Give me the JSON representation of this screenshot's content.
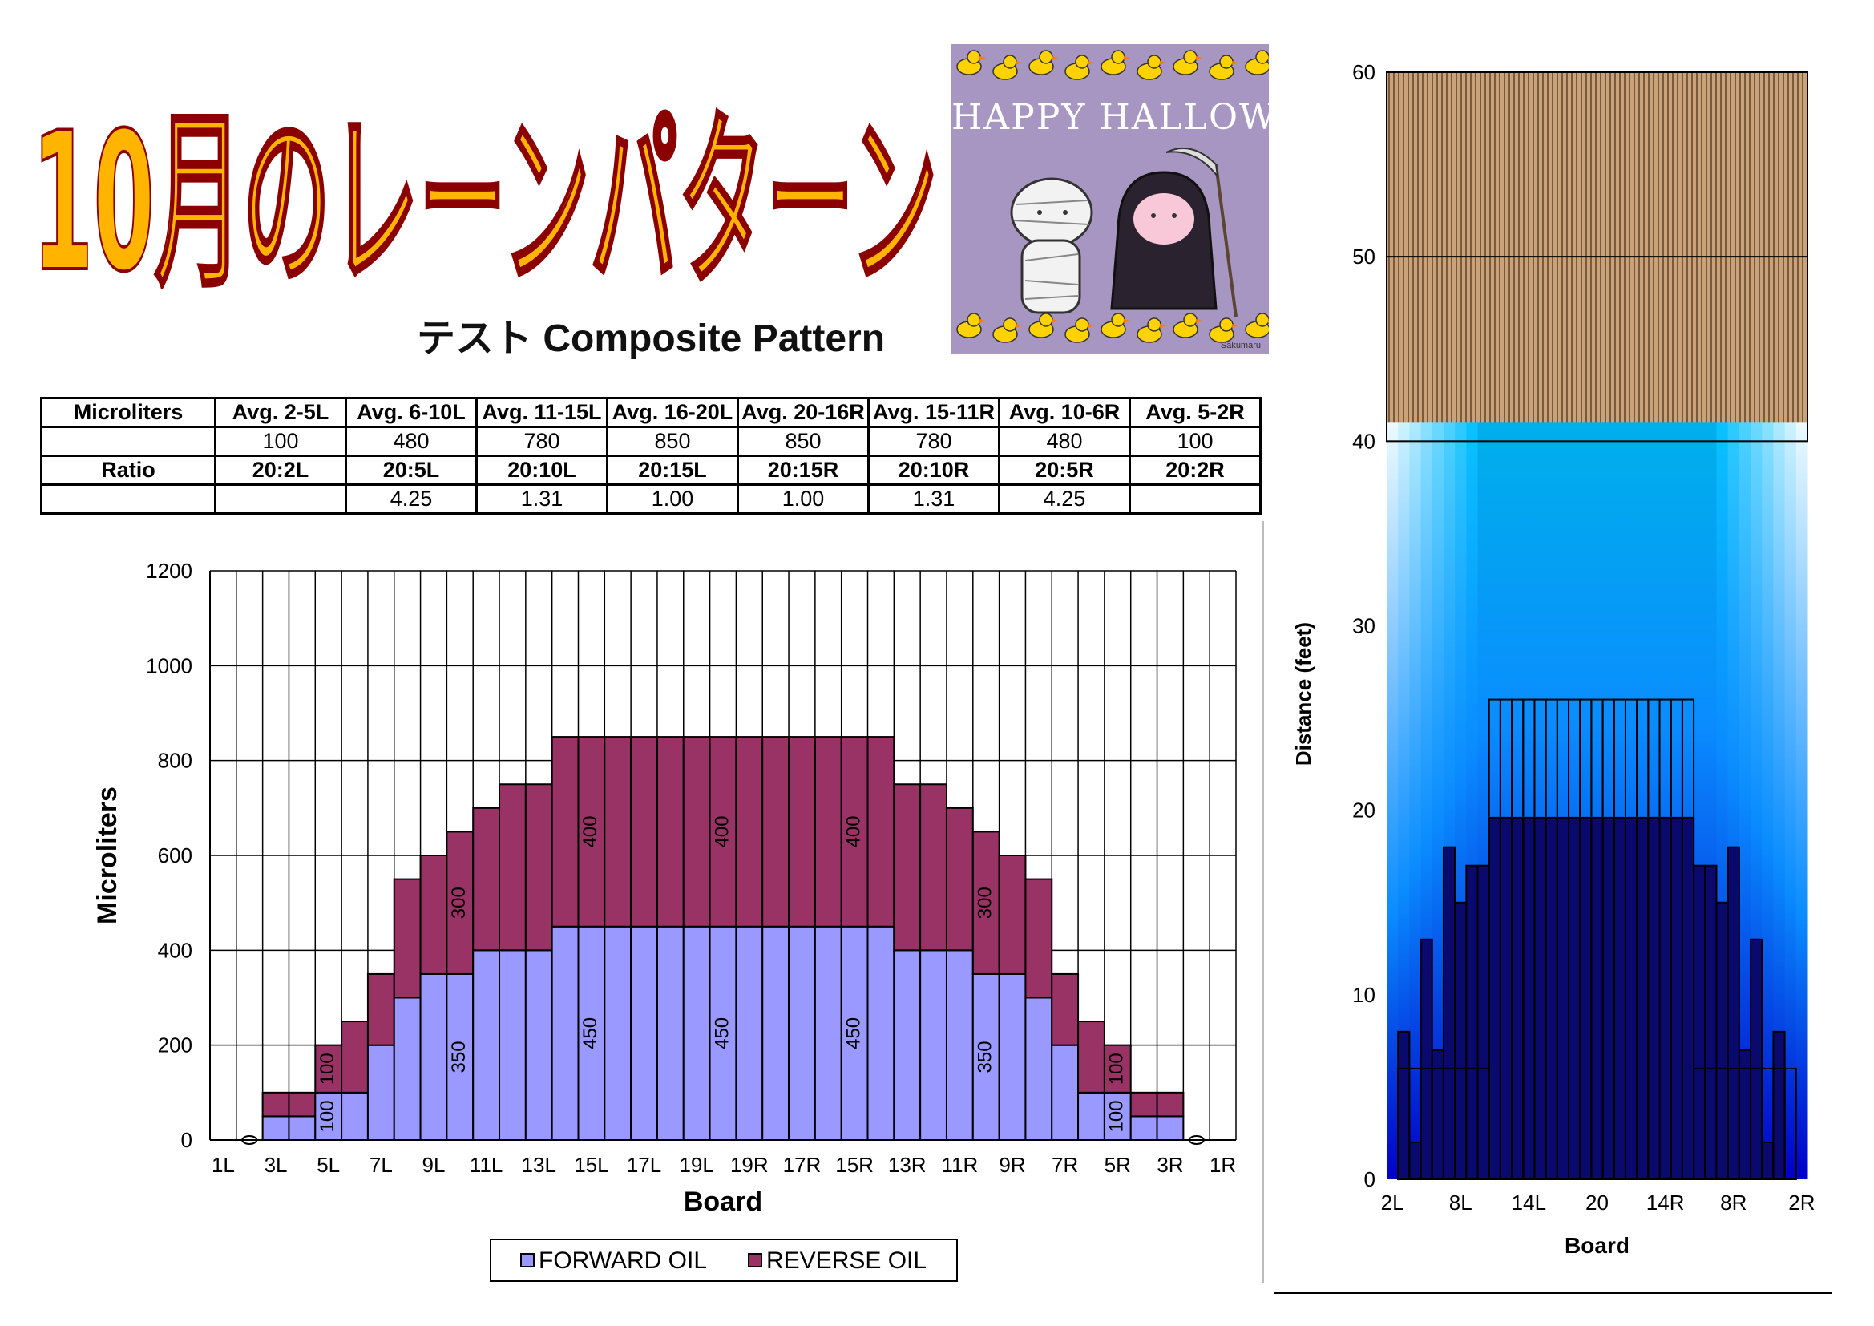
{
  "title": "10月のレーンパターン",
  "subtitle": "テスト Composite Pattern",
  "halloween": {
    "text": "HAPPY HALLOWEEN",
    "signature": "Sakumaru"
  },
  "table": {
    "rows": [
      [
        "Microliters",
        "Avg. 2-5L",
        "Avg. 6-10L",
        "Avg. 11-15L",
        "Avg. 16-20L",
        "Avg. 20-16R",
        "Avg. 15-11R",
        "Avg. 10-6R",
        "Avg. 5-2R"
      ],
      [
        "",
        "100",
        "480",
        "780",
        "850",
        "850",
        "780",
        "480",
        "100"
      ],
      [
        "Ratio",
        "20:2L",
        "20:5L",
        "20:10L",
        "20:15L",
        "20:15R",
        "20:10R",
        "20:5R",
        "20:2R"
      ],
      [
        "",
        "",
        "4.25",
        "1.31",
        "1.00",
        "1.00",
        "1.31",
        "4.25",
        ""
      ]
    ]
  },
  "colors": {
    "forward": "#9999ff",
    "reverse": "#993366",
    "title_fill": "#ffb400",
    "title_stroke": "#8b0000",
    "wood": "#c9a27a",
    "wood_stripe": "#7a5a3c"
  },
  "chart_data": [
    {
      "type": "bar",
      "stacked": true,
      "categories": [
        "1L",
        "2L",
        "3L",
        "4L",
        "5L",
        "6L",
        "7L",
        "8L",
        "9L",
        "10L",
        "11L",
        "12L",
        "13L",
        "14L",
        "15L",
        "16L",
        "17L",
        "18L",
        "19L",
        "20",
        "19R",
        "18R",
        "17R",
        "16R",
        "15R",
        "14R",
        "13R",
        "12R",
        "11R",
        "10R",
        "9R",
        "8R",
        "7R",
        "6R",
        "5R",
        "4R",
        "3R",
        "2R",
        "1R"
      ],
      "tick_labels": [
        "1L",
        "3L",
        "5L",
        "7L",
        "9L",
        "11L",
        "13L",
        "15L",
        "17L",
        "19L",
        "19R",
        "17R",
        "15R",
        "13R",
        "11R",
        "9R",
        "7R",
        "5R",
        "3R",
        "1R"
      ],
      "series": [
        {
          "name": "FORWARD OIL",
          "values": [
            0,
            0,
            50,
            50,
            100,
            100,
            200,
            300,
            350,
            350,
            400,
            400,
            400,
            450,
            450,
            450,
            450,
            450,
            450,
            450,
            450,
            450,
            450,
            450,
            450,
            450,
            400,
            400,
            400,
            350,
            350,
            300,
            200,
            100,
            100,
            50,
            50,
            0,
            0
          ]
        },
        {
          "name": "REVERSE OIL",
          "values": [
            0,
            0,
            50,
            50,
            100,
            150,
            150,
            250,
            250,
            300,
            300,
            350,
            350,
            400,
            400,
            400,
            400,
            400,
            400,
            400,
            400,
            400,
            400,
            400,
            400,
            400,
            350,
            350,
            300,
            300,
            250,
            250,
            150,
            150,
            100,
            50,
            50,
            0,
            0
          ]
        }
      ],
      "data_labels": [
        {
          "category": "5L",
          "series": "FORWARD OIL",
          "text": "100"
        },
        {
          "category": "5L",
          "series": "REVERSE OIL",
          "text": "100"
        },
        {
          "category": "10L",
          "series": "FORWARD OIL",
          "text": "350"
        },
        {
          "category": "10L",
          "series": "REVERSE OIL",
          "text": "300"
        },
        {
          "category": "15L",
          "series": "FORWARD OIL",
          "text": "450"
        },
        {
          "category": "15L",
          "series": "REVERSE OIL",
          "text": "400"
        },
        {
          "category": "20",
          "series": "FORWARD OIL",
          "text": "450"
        },
        {
          "category": "20",
          "series": "REVERSE OIL",
          "text": "400"
        },
        {
          "category": "15R",
          "series": "FORWARD OIL",
          "text": "450"
        },
        {
          "category": "15R",
          "series": "REVERSE OIL",
          "text": "400"
        },
        {
          "category": "10R",
          "series": "FORWARD OIL",
          "text": "350"
        },
        {
          "category": "10R",
          "series": "REVERSE OIL",
          "text": "300"
        },
        {
          "category": "5R",
          "series": "FORWARD OIL",
          "text": "100"
        },
        {
          "category": "5R",
          "series": "REVERSE OIL",
          "text": "100"
        }
      ],
      "zero_markers": [
        "2L",
        "2R"
      ],
      "xlabel": "Board",
      "ylabel": "Microliters",
      "ylim": [
        0,
        1200
      ],
      "yticks": [
        0,
        200,
        400,
        600,
        800,
        1000,
        1200
      ],
      "grid": true,
      "legend": "bottom"
    },
    {
      "type": "heatmap",
      "boards": [
        "2L",
        "3L",
        "4L",
        "5L",
        "6L",
        "7L",
        "8L",
        "9L",
        "10L",
        "11L",
        "12L",
        "13L",
        "14L",
        "15L",
        "16L",
        "17L",
        "18L",
        "19L",
        "20",
        "19R",
        "18R",
        "17R",
        "16R",
        "15R",
        "14R",
        "13R",
        "12R",
        "11R",
        "10R",
        "9R",
        "8R",
        "7R",
        "6R",
        "5R",
        "4R",
        "3R",
        "2R"
      ],
      "tick_labels": [
        "2L",
        "8L",
        "14L",
        "20",
        "14R",
        "8R",
        "2R"
      ],
      "forward_distance": [
        0,
        8,
        2,
        13,
        7,
        18,
        15,
        17,
        17,
        19.6,
        19.6,
        19.6,
        19.6,
        19.6,
        19.6,
        19.6,
        19.6,
        19.6,
        19.6,
        19.6,
        19.6,
        19.6,
        19.6,
        19.6,
        19.6,
        19.6,
        19.6,
        17,
        17,
        15,
        18,
        7,
        13,
        2,
        8,
        0,
        0
      ],
      "reverse_distance": [
        0,
        6,
        6,
        6,
        6,
        6,
        6,
        6,
        6,
        26,
        26,
        26,
        26,
        26,
        26,
        26,
        26,
        26,
        26,
        26,
        26,
        26,
        26,
        26,
        26,
        26,
        26,
        6,
        6,
        6,
        6,
        6,
        6,
        6,
        6,
        6,
        0
      ],
      "oil_length": 41,
      "xlabel": "Board",
      "ylabel": "Distance (feet)",
      "ylim": [
        0,
        60
      ],
      "yticks": [
        0,
        10,
        20,
        30,
        40,
        50,
        60
      ],
      "reference_lines": [
        50
      ]
    }
  ]
}
